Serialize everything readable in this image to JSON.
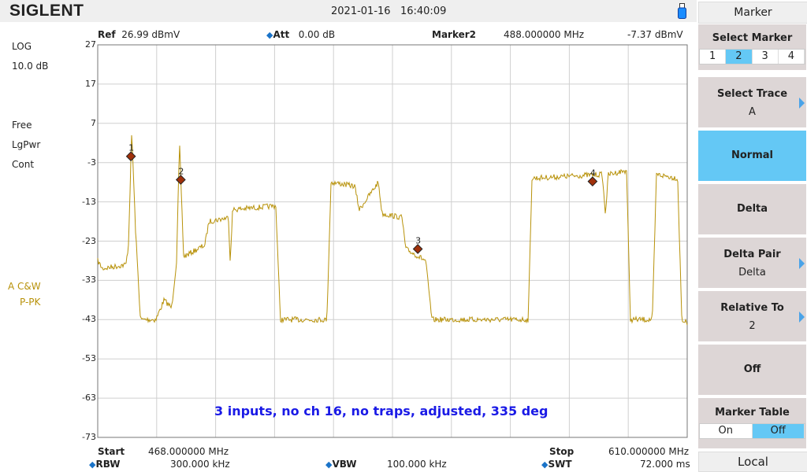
{
  "header": {
    "brand": "SIGLENT",
    "date": "2021-01-16",
    "time": "16:40:09",
    "usb_icon": "usb-drive-icon"
  },
  "info": {
    "ref_label": "Ref",
    "ref_value": "26.99 dBmV",
    "att_label": "Att",
    "att_value": "0.00 dB",
    "marker_label": "Marker2",
    "marker_freq": "488.000000 MHz",
    "marker_level": "-7.37 dBmV"
  },
  "left": {
    "scale": "LOG",
    "div": "10.0 dB",
    "trig": "Free",
    "det": "LgPwr",
    "sweep": "Cont",
    "trace_id": "A",
    "trace_type": "C&W",
    "trace_det": "P-PK"
  },
  "footer": {
    "start_label": "Start",
    "start_value": "468.000000 MHz",
    "stop_label": "Stop",
    "stop_value": "610.000000 MHz",
    "rbw_label": "RBW",
    "rbw_value": "300.000 kHz",
    "vbw_label": "VBW",
    "vbw_value": "100.000 kHz",
    "swt_label": "SWT",
    "swt_value": "72.000 ms"
  },
  "softkeys": {
    "title": "Marker",
    "select_marker": "Select Marker",
    "markers": [
      "1",
      "2",
      "3",
      "4"
    ],
    "selected_marker": "2",
    "select_trace": "Select Trace",
    "trace": "A",
    "normal": "Normal",
    "delta": "Delta",
    "delta_pair": "Delta Pair",
    "delta_pair_value": "Delta",
    "relative_to": "Relative To",
    "relative_to_value": "2",
    "off": "Off",
    "marker_table": "Marker Table",
    "table_on": "On",
    "table_off": "Off",
    "local": "Local"
  },
  "chart_data": {
    "type": "line",
    "xlim": [
      468,
      610
    ],
    "ylim": [
      -73,
      27
    ],
    "y_ticks": [
      "27",
      "17",
      "7",
      "-3",
      "-13",
      "-23",
      "-33",
      "-43",
      "-53",
      "-63",
      "-73"
    ],
    "annotation": "3 inputs, no ch 16, no traps, adjusted, 335 deg",
    "trace_color": "#b8920a",
    "grid": true,
    "x": [
      468,
      469.1,
      474.8,
      475.4,
      476.2,
      477.1,
      478.3,
      482,
      484,
      485.8,
      487,
      487.7,
      488.7,
      493.8,
      494.8,
      499.5,
      499.9,
      500.5,
      510.9,
      512,
      523.2,
      524.2,
      529.9,
      531,
      535.6,
      536.5,
      541.3,
      542.2,
      547,
      548.5,
      571.7,
      572.6,
      589.5,
      590.3,
      591,
      595.4,
      596.3,
      601.6,
      602.6,
      607.7,
      608.7,
      610
    ],
    "y": [
      -28,
      -30,
      -29,
      -24,
      5,
      -20,
      -43,
      -43,
      -38,
      -40,
      -28,
      2,
      -27,
      -24,
      -18,
      -17,
      -28,
      -15,
      -14,
      -43,
      -43,
      -8,
      -9,
      -15,
      -8,
      -16,
      -17,
      -25,
      -28,
      -43,
      -43,
      -7,
      -6,
      -16,
      -6,
      -5,
      -43,
      -43,
      -6,
      -7,
      -43,
      -44
    ],
    "markers": [
      {
        "id": "1",
        "freq": 476.0,
        "level": -1.4
      },
      {
        "id": "2",
        "freq": 488.0,
        "level": -7.37
      },
      {
        "id": "3",
        "freq": 545.1,
        "level": -25.0
      },
      {
        "id": "4",
        "freq": 587.2,
        "level": -7.8
      }
    ]
  }
}
